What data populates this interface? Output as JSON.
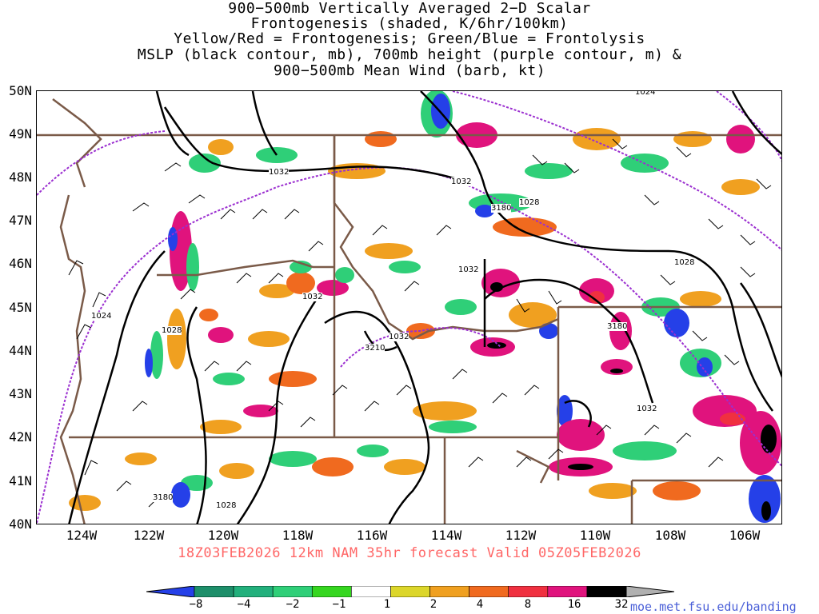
{
  "title": {
    "line1": "900−500mb Vertically Averaged 2−D Scalar",
    "line2": "Frontogenesis (shaded, K/6hr/100km)",
    "line3": "Yellow/Red = Frontogenesis;  Green/Blue = Frontolysis",
    "line4": "MSLP (black contour, mb), 700mb height (purple contour, m) &",
    "line5": "900−500mb Mean Wind (barb, kt)"
  },
  "axes": {
    "lat_labels": [
      "50N",
      "49N",
      "48N",
      "47N",
      "46N",
      "45N",
      "44N",
      "43N",
      "42N",
      "41N",
      "40N"
    ],
    "lon_labels": [
      "124W",
      "122W",
      "120W",
      "118W",
      "116W",
      "114W",
      "112W",
      "110W",
      "108W",
      "106W"
    ]
  },
  "valid_text": "18Z03FEB2026 12km NAM 35hr forecast Valid 05Z05FEB2026",
  "colorbar": {
    "labels": [
      "−8",
      "−4",
      "−2",
      "−1",
      "1",
      "2",
      "4",
      "8",
      "16",
      "32"
    ],
    "colors": [
      "#2540e8",
      "#1d8f6a",
      "#22b07c",
      "#2fcf78",
      "#35d61f",
      "#ffffff",
      "#dcd62a",
      "#f0a020",
      "#f06a1f",
      "#f03040",
      "#e0137d",
      "#000000",
      "#b0b0b0"
    ]
  },
  "contour_labels": {
    "mslp": [
      "1024",
      "1032",
      "1032",
      "1028",
      "1024",
      "1028",
      "1032",
      "1032",
      "1028",
      "1032",
      "1032",
      "1028"
    ],
    "height_700mb": [
      "3180",
      "3180",
      "3210",
      "3180"
    ]
  },
  "colors": {
    "mslp_contour": "#000000",
    "height_contour": "#9b2fd0",
    "borders": "#7a5a48",
    "valid_text": "#ff6666",
    "credit_text": "#4a5fd8"
  },
  "credit": "moe.met.fsu.edu/banding"
}
